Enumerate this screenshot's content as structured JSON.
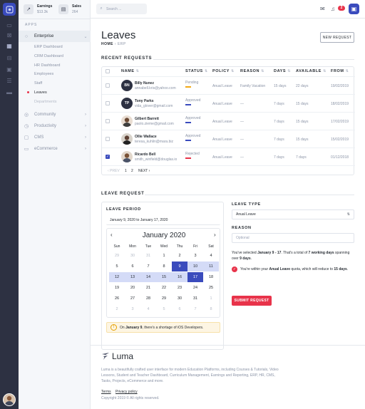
{
  "sidebar": {
    "stats": [
      {
        "label": "Earnings",
        "value": "$13.3k",
        "icon": "trending-up-icon"
      },
      {
        "label": "Sales",
        "value": "264",
        "icon": "receipt-icon"
      }
    ],
    "section_label": "APPS",
    "enterprise": {
      "label": "Enterprise",
      "items": [
        "ERP Dashboard",
        "CRM Dashboard",
        "HR Dashboard",
        "Employees",
        "Staff",
        "Leaves",
        "Departments"
      ]
    },
    "groups": [
      "Community",
      "Productivity",
      "CMS",
      "eCommerce"
    ]
  },
  "topbar": {
    "search_placeholder": "Search ...",
    "notification_count": "2"
  },
  "page": {
    "title": "Leaves",
    "breadcrumb": [
      "HOME",
      "ERP"
    ],
    "new_request_label": "NEW REQUEST"
  },
  "recent": {
    "title": "RECENT REQUESTS",
    "columns": [
      "NAME",
      "STATUS",
      "POLICY",
      "REASON",
      "DAYS",
      "AVAILABLE",
      "FROM"
    ],
    "rows": [
      {
        "initials": "BN",
        "name": "Billy Nunez",
        "email": "annabell.kris@yahoo.com",
        "status": "Pending",
        "status_color": "#f2a814",
        "policy": "Anual Leave",
        "reason": "Family Vacation",
        "days": "15 days",
        "available": "22 days",
        "from": "19/02/2019",
        "checked": false
      },
      {
        "initials": "TP",
        "name": "Tony Parks",
        "email": "vida_glover@gmail.com",
        "status": "Approved",
        "status_color": "#3a4bbd",
        "policy": "Anual Leave",
        "reason": "—",
        "days": "7 days",
        "available": "15 days",
        "from": "18/02/2019",
        "checked": false
      },
      {
        "initials": "",
        "name": "Gilbert Barrett",
        "email": "paolo.zieme@gmail.com",
        "status": "Approved",
        "status_color": "#3a4bbd",
        "policy": "Anual Leave",
        "reason": "—",
        "days": "7 days",
        "available": "15 days",
        "from": "17/02/2019",
        "checked": false
      },
      {
        "initials": "",
        "name": "Ollie Wallace",
        "email": "teresa_kuhlin@mara.biz",
        "status": "Approved",
        "status_color": "#3a4bbd",
        "policy": "Anual Leave",
        "reason": "—",
        "days": "7 days",
        "available": "15 days",
        "from": "15/02/2019",
        "checked": false
      },
      {
        "initials": "",
        "name": "Ricardo Bell",
        "email": "smith_winfield@douglas.io",
        "status": "Rejected",
        "status_color": "#e8334a",
        "policy": "Anual Leave",
        "reason": "—",
        "days": "7 days",
        "available": "7 days",
        "from": "01/12/2018",
        "checked": true
      }
    ],
    "pager": {
      "prev": "‹ PREV",
      "pages": [
        "1",
        "2"
      ],
      "next": "NEXT ›"
    }
  },
  "leave_request": {
    "title": "LEAVE REQUEST",
    "period_label": "LEAVE PERIOD",
    "period_value": "January 9, 2020 to January 17, 2020",
    "calendar": {
      "month": "January",
      "year": "2020",
      "weekdays": [
        "Sun",
        "Mon",
        "Tue",
        "Wed",
        "Thu",
        "Fri",
        "Sat"
      ],
      "days": [
        "29",
        "30",
        "31",
        "1",
        "2",
        "3",
        "4",
        "5",
        "6",
        "7",
        "8",
        "9",
        "10",
        "11",
        "12",
        "13",
        "14",
        "15",
        "16",
        "17",
        "18",
        "19",
        "20",
        "21",
        "22",
        "23",
        "24",
        "25",
        "26",
        "27",
        "28",
        "29",
        "30",
        "31",
        "1",
        "2",
        "3",
        "4",
        "5",
        "6",
        "7",
        "8"
      ],
      "range_start": 9,
      "range_end": 17
    },
    "warning": {
      "prefix": "On ",
      "date": "January 9",
      "suffix": ", there's a shortage of iOS Developers."
    },
    "type_label": "LEAVE TYPE",
    "type_value": "Anual Leave",
    "reason_label": "REASON",
    "reason_placeholder": "Optional",
    "summary": {
      "p1": "You've selected ",
      "range": "January 9 - 17",
      "p2": ". That's a total of ",
      "days": "7 working days",
      "p3": " spanning over ",
      "span": "9 days",
      "p4": "."
    },
    "quota": {
      "p1": "You're within your ",
      "type": "Anual Leave",
      "p2": " quota, which will reduce to ",
      "days": "15 days",
      "p3": "."
    },
    "submit_label": "SUBMIT REQUEST"
  },
  "footer": {
    "brand": "Luma",
    "description": "Luma is a beautifully crafted user interface for modern Education Platforms, including Courses & Tutorials, Video Lessons, Student and Teacher Dashboard, Curriculum Management, Earnings and Reporting, ERP, HR, CMS, Tasks, Projects, eCommerce and more.",
    "links": [
      "Terms",
      "Privacy policy"
    ],
    "copyright": "Copyright 2019 © All rights reserved."
  }
}
